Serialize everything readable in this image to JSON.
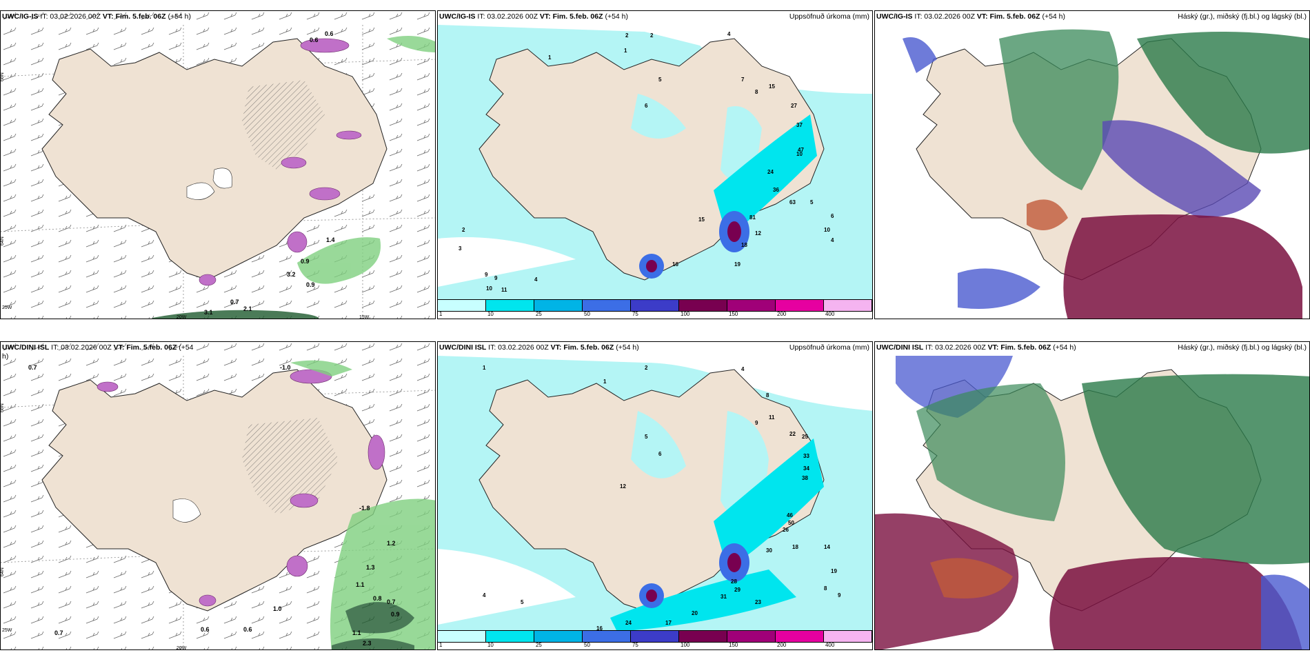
{
  "panels": {
    "top_left": {
      "model": "UWC/IG-IS",
      "it": "IT: 03.02.2026 00Z",
      "vt_label": "VT:",
      "vt": "Fim. 5.feb. 06Z",
      "lead": "(+54 h)",
      "values": [
        "0.6",
        "0.6",
        "0.9",
        "3.2",
        "1.4",
        "0.9",
        "0.7",
        "3.1",
        "2.1"
      ],
      "axes": [
        "66N",
        "64N",
        "25W",
        "20W",
        "15W",
        "66N",
        "64N"
      ]
    },
    "top_mid": {
      "model": "UWC/IG-IS",
      "it": "IT: 03.02.2026 00Z",
      "vt_label": "VT:",
      "vt": "Fim. 5.feb. 06Z",
      "lead": "(+54 h)",
      "right_title": "Uppsöfnuð úrkoma (mm)",
      "values": [
        "2",
        "2",
        "1",
        "1",
        "4",
        "5",
        "7",
        "6",
        "8",
        "10",
        "15",
        "27",
        "37",
        "47",
        "24",
        "36",
        "63",
        "81",
        "15",
        "16",
        "19",
        "9",
        "11",
        "12",
        "10",
        "4",
        "5",
        "6",
        "2",
        "3",
        "9",
        "10",
        "4",
        "18"
      ]
    },
    "top_right": {
      "model": "UWC/IG-IS",
      "it": "IT: 03.02.2026 00Z",
      "vt_label": "VT:",
      "vt": "Fim. 5.feb. 06Z",
      "lead": "(+54 h)",
      "right_title": "Háský (gr.), miðský (fj.bl.) og lágský (bl.)"
    },
    "bottom_left": {
      "model": "UWC/DINI ISL",
      "it": "IT: 03.02.2026 00Z",
      "vt_label": "VT:",
      "vt": "Fim. 5.feb. 06Z",
      "lead": "(+54",
      "lead2": "h)",
      "values": [
        "0.7",
        "-1.0",
        "-1.8",
        "1.2",
        "1.3",
        "1.1",
        "0.8",
        "0.7",
        "0.9",
        "1.0",
        "0.6",
        "0.6",
        "0.7",
        "1.1",
        "2.3"
      ],
      "axes": [
        "66N",
        "64N",
        "25W",
        "20W",
        "66N",
        "64N"
      ]
    },
    "bottom_mid": {
      "model": "UWC/DINI ISL",
      "it": "IT: 03.02.2026 00Z",
      "vt_label": "VT:",
      "vt": "Fim. 5.feb. 06Z",
      "lead": "(+54 h)",
      "right_title": "Uppsöfnuð úrkoma (mm)",
      "values": [
        "1",
        "2",
        "1",
        "4",
        "5",
        "6",
        "8",
        "9",
        "11",
        "22",
        "25",
        "33",
        "34",
        "38",
        "46",
        "50",
        "30",
        "26",
        "28",
        "29",
        "31",
        "23",
        "20",
        "24",
        "17",
        "16",
        "12",
        "14",
        "19",
        "18",
        "4",
        "5",
        "8",
        "9"
      ]
    },
    "bottom_right": {
      "model": "UWC/DINI ISL",
      "it": "IT: 03.02.2026 00Z",
      "vt_label": "VT:",
      "vt": "Fim. 5.feb. 06Z",
      "lead": "(+54 h)",
      "right_title": "Háský (gr.), miðský (fj.bl.) og lágský (bl.)"
    }
  },
  "colorbar": {
    "labels": [
      "1",
      "10",
      "25",
      "50",
      "75",
      "100",
      "150",
      "200",
      "400"
    ],
    "colors": [
      "#c8ffff",
      "#00e5ee",
      "#00b4e6",
      "#3c6ee6",
      "#3c3cc8",
      "#780050",
      "#a00078",
      "#e600a0",
      "#f5b4f0"
    ]
  },
  "colors": {
    "land": "#efe2d3",
    "sea_precip": "#b4f5f5",
    "grid": "#888888",
    "green_dark": "#1e5a2e",
    "purple": "#b44fb4"
  }
}
